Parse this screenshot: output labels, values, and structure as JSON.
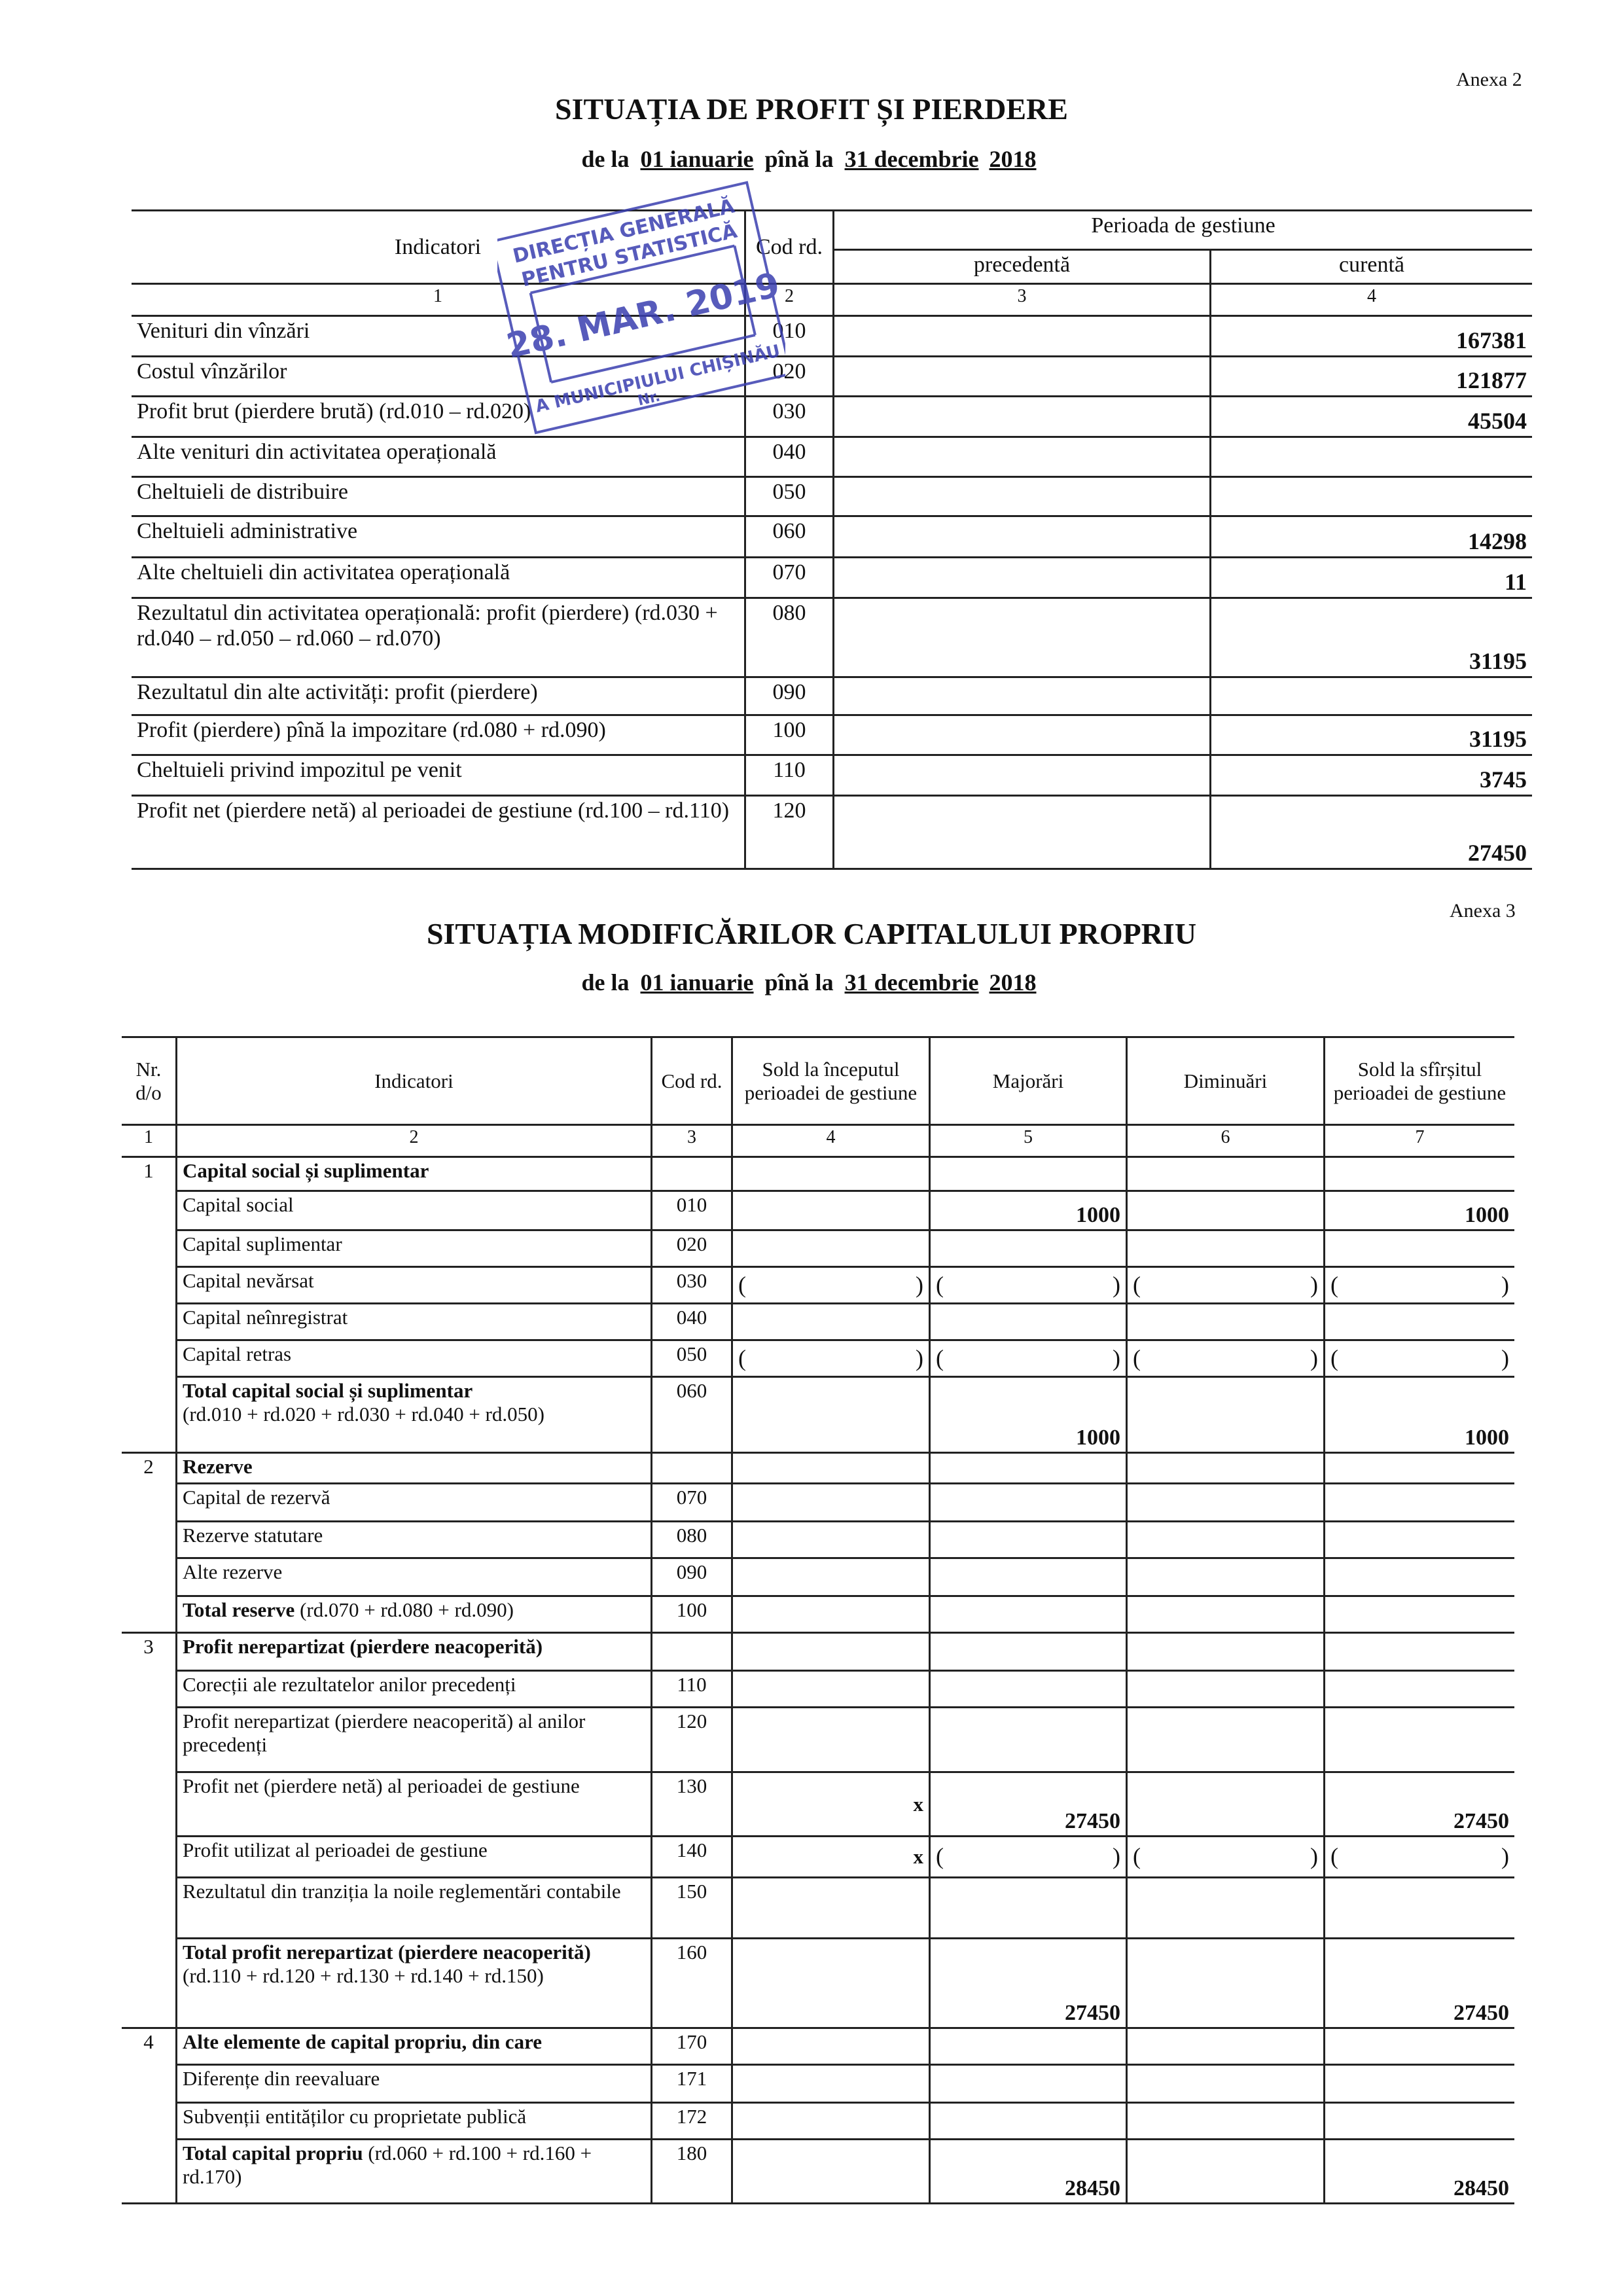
{
  "profit_loss": {
    "annex": "Anexa 2",
    "title": "SITUAȚIA DE PROFIT ȘI PIERDERE",
    "period": {
      "from_label": "de la",
      "from": "01 ianuarie",
      "to_label": "pînă la",
      "to": "31 decembrie",
      "year_prefix": "20",
      "year_suffix": "18"
    },
    "headers": {
      "indicators": "Indicatori",
      "code": "Cod rd.",
      "period": "Perioada de gestiune",
      "previous": "precedentă",
      "current": "curentă"
    },
    "col_numbers": [
      "1",
      "2",
      "3",
      "4"
    ],
    "rows": [
      {
        "label": "Venituri din vînzări",
        "code": "010",
        "previous": "",
        "current": "167381"
      },
      {
        "label": "Costul vînzărilor",
        "code": "020",
        "previous": "",
        "current": "121877"
      },
      {
        "label": "Profit brut (pierdere brută)  (rd.010 – rd.020)",
        "code": "030",
        "previous": "",
        "current": "45504"
      },
      {
        "label": "Alte venituri din activitatea operațională",
        "code": "040",
        "previous": "",
        "current": ""
      },
      {
        "label": "Cheltuieli de distribuire",
        "code": "050",
        "previous": "",
        "current": ""
      },
      {
        "label": "Cheltuieli administrative",
        "code": "060",
        "previous": "",
        "current": "14298"
      },
      {
        "label": "Alte cheltuieli din activitatea operațională",
        "code": "070",
        "previous": "",
        "current": "11"
      },
      {
        "label": "Rezultatul din activitatea operațională: profit (pierdere) (rd.030 + rd.040 – rd.050 – rd.060 – rd.070)",
        "code": "080",
        "previous": "",
        "current": "31195"
      },
      {
        "label": "Rezultatul din alte activități: profit (pierdere)",
        "code": "090",
        "previous": "",
        "current": ""
      },
      {
        "label": "Profit (pierdere) pînă la impozitare (rd.080 + rd.090)",
        "code": "100",
        "previous": "",
        "current": "31195"
      },
      {
        "label": "Cheltuieli privind impozitul pe venit",
        "code": "110",
        "previous": "",
        "current": "3745"
      },
      {
        "label": "Profit net (pierdere netă) al perioadei de gestiune (rd.100 – rd.110)",
        "code": "120",
        "previous": "",
        "current": "27450"
      }
    ]
  },
  "stamp": {
    "line1": "DIRECȚIA GENERALĂ",
    "line2": "PENTRU STATISTICĂ",
    "date": "28. MAR. 2019",
    "line3": "A MUNICIPIULUI CHIȘINĂU",
    "number_label": "Nr.",
    "color": "#3a3fb0"
  },
  "equity_changes": {
    "annex": "Anexa 3",
    "title": "SITUAȚIA MODIFICĂRILOR CAPITALULUI PROPRIU",
    "period": {
      "from_label": "de la",
      "from": "01 ianuarie",
      "to_label": "pînă la",
      "to": "31 decembrie",
      "year_prefix": "20",
      "year_suffix": "18"
    },
    "headers": [
      "Nr. d/o",
      "Indicatori",
      "Cod rd.",
      "Sold la începutul perioadei  de gestiune",
      "Majorări",
      "Diminuări",
      "Sold la sfîrșitul perioadei de gestiune"
    ],
    "col_numbers": [
      "1",
      "2",
      "3",
      "4",
      "5",
      "6",
      "7"
    ],
    "rows": [
      {
        "nr": "1",
        "label": "Capital social și suplimentar",
        "bold": true,
        "code": "",
        "values": [
          "",
          "",
          "",
          ""
        ]
      },
      {
        "nr": "",
        "label": "Capital social",
        "code": "010",
        "values": [
          "",
          "1000",
          "",
          "1000"
        ]
      },
      {
        "nr": "",
        "label": "Capital suplimentar",
        "code": "020",
        "values": [
          "",
          "",
          "",
          ""
        ]
      },
      {
        "nr": "",
        "label": "Capital nevărsat",
        "code": "030",
        "values": [
          "",
          "",
          "",
          ""
        ],
        "paren": [
          true,
          true,
          true,
          true
        ]
      },
      {
        "nr": "",
        "label": "Capital neînregistrat",
        "code": "040",
        "values": [
          "",
          "",
          "",
          ""
        ]
      },
      {
        "nr": "",
        "label": "Capital retras",
        "code": "050",
        "values": [
          "",
          "",
          "",
          ""
        ],
        "paren": [
          true,
          true,
          true,
          true
        ]
      },
      {
        "nr": "",
        "label": "Total capital social și suplimentar",
        "label_extra": "(rd.010 + rd.020 + rd.030 + rd.040 + rd.050)",
        "bold": true,
        "code": "060",
        "values": [
          "",
          "1000",
          "",
          "1000"
        ]
      },
      {
        "nr": "2",
        "label": "Rezerve",
        "bold": true,
        "code": "",
        "values": [
          "",
          "",
          "",
          ""
        ]
      },
      {
        "nr": "",
        "label": "Capital de rezervă",
        "code": "070",
        "values": [
          "",
          "",
          "",
          ""
        ]
      },
      {
        "nr": "",
        "label": "Rezerve statutare",
        "code": "080",
        "values": [
          "",
          "",
          "",
          ""
        ]
      },
      {
        "nr": "",
        "label": "Alte rezerve",
        "code": "090",
        "values": [
          "",
          "",
          "",
          ""
        ]
      },
      {
        "nr": "",
        "label": "Total reserve",
        "label_extra": " (rd.070 + rd.080 + rd.090)",
        "bold": true,
        "code": "100",
        "values": [
          "",
          "",
          "",
          ""
        ]
      },
      {
        "nr": "3",
        "label": "Profit nerepartizat (pierdere neacoperită)",
        "bold": true,
        "code": "",
        "values": [
          "",
          "",
          "",
          ""
        ]
      },
      {
        "nr": "",
        "label": "Corecții ale rezultatelor anilor precedenți",
        "code": "110",
        "values": [
          "",
          "",
          "",
          ""
        ]
      },
      {
        "nr": "",
        "label": "Profit nerepartizat (pierdere neacoperită) al anilor precedenți",
        "code": "120",
        "values": [
          "",
          "",
          "",
          ""
        ]
      },
      {
        "nr": "",
        "label": "Profit net (pierdere netă) al perioadei de gestiune",
        "code": "130",
        "values": [
          "x",
          "27450",
          "",
          "27450"
        ]
      },
      {
        "nr": "",
        "label": "Profit utilizat al perioadei de gestiune",
        "code": "140",
        "values": [
          "x",
          "",
          "",
          ""
        ],
        "paren": [
          false,
          true,
          true,
          true
        ]
      },
      {
        "nr": "",
        "label": "Rezultatul din tranziția la noile reglementări contabile",
        "code": "150",
        "values": [
          "",
          "",
          "",
          ""
        ]
      },
      {
        "nr": "",
        "label": "Total profit nerepartizat (pierdere neacoperită)",
        "label_extra": " (rd.110 + rd.120 + rd.130 + rd.140 + rd.150)",
        "bold": true,
        "code": "160",
        "values": [
          "",
          "27450",
          "",
          "27450"
        ]
      },
      {
        "nr": "4",
        "label": "Alte elemente de capital propriu, din care",
        "bold": true,
        "code": "170",
        "values": [
          "",
          "",
          "",
          ""
        ]
      },
      {
        "nr": "",
        "label": "Diferențe din reevaluare",
        "code": "171",
        "values": [
          "",
          "",
          "",
          ""
        ]
      },
      {
        "nr": "",
        "label": "Subvenții entităților cu proprietate publică",
        "code": "172",
        "values": [
          "",
          "",
          "",
          ""
        ]
      },
      {
        "nr": "",
        "label": "Total capital propriu",
        "label_extra": " (rd.060 + rd.100 + rd.160 + rd.170)",
        "bold": true,
        "code": "180",
        "values": [
          "",
          "28450",
          "",
          "28450"
        ]
      }
    ]
  }
}
